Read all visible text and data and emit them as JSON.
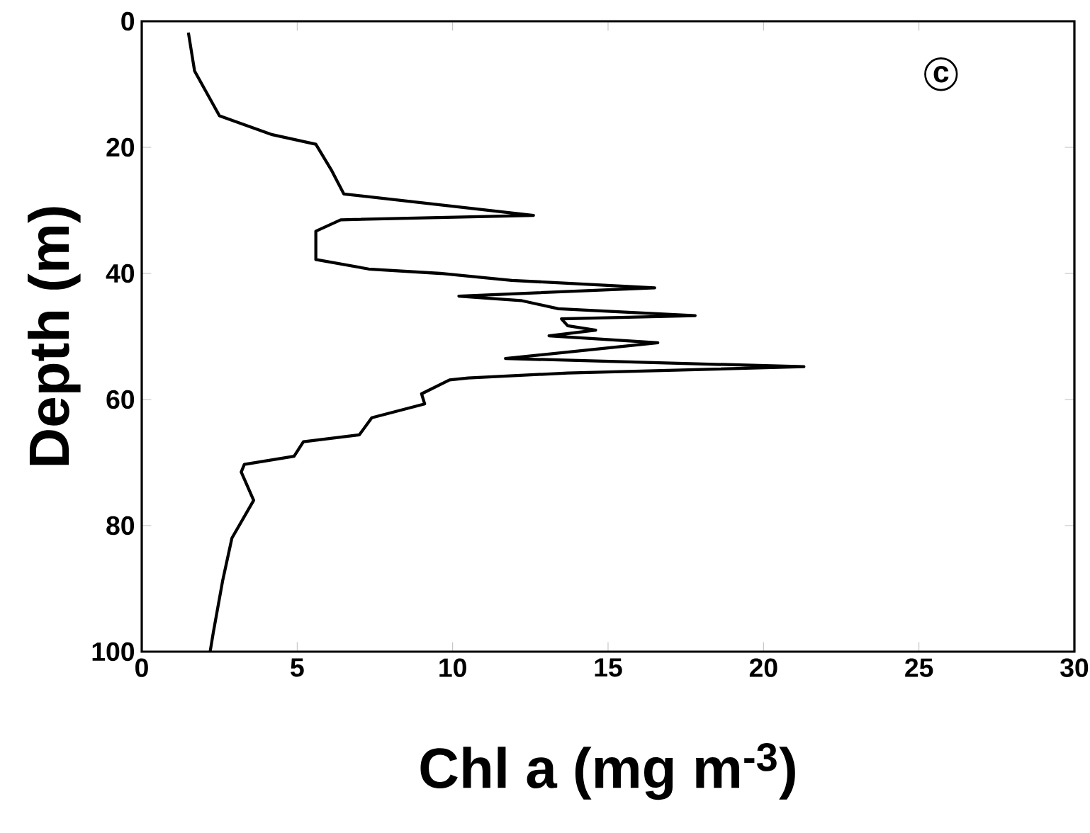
{
  "chart_data": {
    "type": "line",
    "xlabel": "Chl a (mg m$^{-3}$)",
    "ylabel": "Depth (m)",
    "xlim": [
      0,
      30
    ],
    "ylim": [
      100,
      0
    ],
    "xticks": [
      0,
      5,
      10,
      15,
      20,
      25,
      30
    ],
    "yticks": [
      0,
      20,
      40,
      60,
      80,
      100
    ],
    "marker": "none",
    "line_style": "solid",
    "annotations": [
      "c"
    ],
    "series": [
      {
        "color": "#000000",
        "x": [
          1.5,
          1.7,
          2.5,
          4.2,
          5.6,
          6.1,
          6.5,
          12.6,
          6.4,
          5.6,
          5.6,
          7.3,
          9.6,
          11.9,
          16.5,
          10.2,
          12.2,
          13.4,
          17.8,
          13.5,
          13.7,
          14.6,
          13.1,
          16.6,
          11.7,
          21.3,
          13.7,
          10.5,
          9.9,
          9.0,
          9.1,
          7.4,
          7.0,
          5.2,
          4.9,
          3.3,
          3.2,
          3.6,
          2.9,
          2.6,
          2.3,
          2.2
        ],
        "values": [
          1.8,
          7.9,
          15,
          18,
          19.5,
          23.6,
          27.4,
          30.8,
          31.5,
          33.3,
          37.8,
          39.3,
          40,
          41.1,
          42.3,
          43.6,
          44.3,
          45.6,
          46.7,
          47.2,
          48.3,
          49,
          49.9,
          51,
          53.5,
          54.8,
          55.8,
          56.6,
          56.9,
          59.1,
          60.7,
          62.9,
          65.6,
          66.7,
          69,
          70.3,
          71.5,
          76,
          82,
          88.8,
          97,
          100
        ]
      }
    ]
  }
}
